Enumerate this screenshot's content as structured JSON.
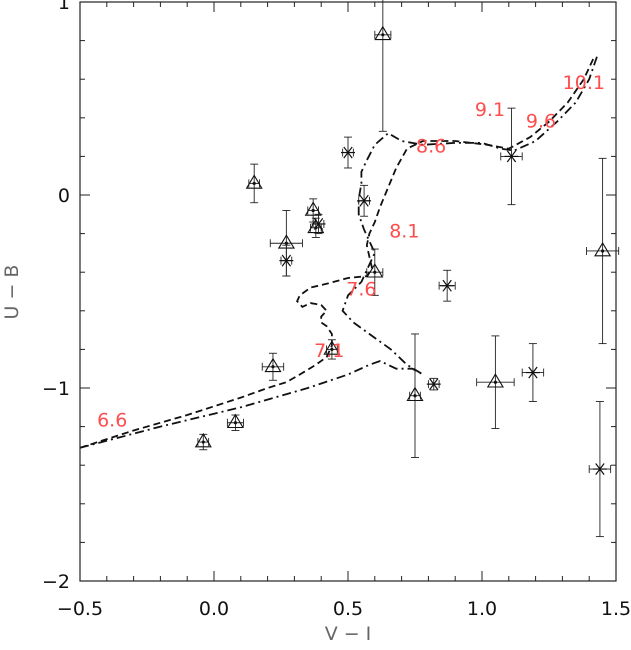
{
  "chart_data": {
    "type": "scatter",
    "xlabel": "V − I",
    "ylabel": "U − B",
    "xlim": [
      -0.5,
      1.5
    ],
    "ylim": [
      -2.0,
      1.0
    ],
    "y_inverted": true,
    "grid": false,
    "x_ticks": [
      "−0.5",
      "0.0",
      "0.5",
      "1.0",
      "1.5"
    ],
    "x_tick_values": [
      -0.5,
      0.0,
      0.5,
      1.0,
      1.5
    ],
    "y_ticks": [
      "1",
      "0",
      "−1",
      "−2"
    ],
    "y_tick_values": [
      1,
      0,
      -1,
      -2
    ],
    "series": [
      {
        "marker": "triangle",
        "points": [
          {
            "x": 0.63,
            "y": 0.83,
            "xerr": 0.03,
            "yerr": 0.5
          },
          {
            "x": 0.15,
            "y": 0.06,
            "xerr": 0.02,
            "yerr": 0.1
          },
          {
            "x": 0.37,
            "y": -0.08,
            "xerr": 0.02,
            "yerr": 0.06
          },
          {
            "x": 0.38,
            "y": -0.17,
            "xerr": 0.02,
            "yerr": 0.05
          },
          {
            "x": 0.27,
            "y": -0.25,
            "xerr": 0.06,
            "yerr": 0.17
          },
          {
            "x": 0.6,
            "y": -0.4,
            "xerr": 0.03,
            "yerr": 0.12
          },
          {
            "x": 0.44,
            "y": -0.8,
            "xerr": 0.02,
            "yerr": 0.05
          },
          {
            "x": 0.22,
            "y": -0.89,
            "xerr": 0.04,
            "yerr": 0.07
          },
          {
            "x": 0.75,
            "y": -1.04,
            "xerr": 0.02,
            "yerr": 0.32
          },
          {
            "x": 1.05,
            "y": -0.97,
            "xerr": 0.07,
            "yerr": 0.24
          },
          {
            "x": 1.45,
            "y": -0.29,
            "xerr": 0.06,
            "yerr": 0.48
          },
          {
            "x": 0.08,
            "y": -1.18,
            "xerr": 0.03,
            "yerr": 0.04
          },
          {
            "x": -0.04,
            "y": -1.28,
            "xerr": 0.02,
            "yerr": 0.04
          }
        ]
      },
      {
        "marker": "asterisk",
        "points": [
          {
            "x": 0.5,
            "y": 0.22,
            "xerr": 0.02,
            "yerr": 0.08
          },
          {
            "x": 0.56,
            "y": -0.03,
            "xerr": 0.02,
            "yerr": 0.08
          },
          {
            "x": 1.11,
            "y": 0.2,
            "xerr": 0.04,
            "yerr": 0.25
          },
          {
            "x": 0.39,
            "y": -0.15,
            "xerr": 0.02,
            "yerr": 0.05
          },
          {
            "x": 0.27,
            "y": -0.34,
            "xerr": 0.02,
            "yerr": 0.08
          },
          {
            "x": 0.87,
            "y": -0.47,
            "xerr": 0.03,
            "yerr": 0.08
          },
          {
            "x": 0.82,
            "y": -0.98,
            "xerr": 0.02,
            "yerr": 0.03
          },
          {
            "x": 1.19,
            "y": -0.92,
            "xerr": 0.04,
            "yerr": 0.15
          },
          {
            "x": 1.44,
            "y": -1.42,
            "xerr": 0.04,
            "yerr": 0.35
          }
        ]
      }
    ],
    "curves": [
      {
        "style": "dashed",
        "points": [
          [
            -0.5,
            -1.31
          ],
          [
            -0.3,
            -1.22
          ],
          [
            -0.1,
            -1.14
          ],
          [
            0.1,
            -1.05
          ],
          [
            0.2,
            -1.0
          ],
          [
            0.27,
            -0.97
          ],
          [
            0.32,
            -0.93
          ],
          [
            0.38,
            -0.88
          ],
          [
            0.42,
            -0.84
          ],
          [
            0.44,
            -0.78
          ],
          [
            0.44,
            -0.72
          ],
          [
            0.42,
            -0.68
          ],
          [
            0.4,
            -0.66
          ],
          [
            0.4,
            -0.63
          ],
          [
            0.42,
            -0.6
          ],
          [
            0.4,
            -0.57
          ],
          [
            0.36,
            -0.56
          ],
          [
            0.33,
            -0.58
          ],
          [
            0.31,
            -0.55
          ],
          [
            0.32,
            -0.52
          ],
          [
            0.36,
            -0.48
          ],
          [
            0.42,
            -0.46
          ],
          [
            0.5,
            -0.43
          ],
          [
            0.57,
            -0.42
          ],
          [
            0.59,
            -0.38
          ],
          [
            0.58,
            -0.32
          ],
          [
            0.57,
            -0.26
          ],
          [
            0.58,
            -0.2
          ],
          [
            0.6,
            -0.14
          ],
          [
            0.62,
            -0.06
          ],
          [
            0.65,
            0.04
          ],
          [
            0.68,
            0.14
          ],
          [
            0.72,
            0.24
          ],
          [
            0.78,
            0.28
          ],
          [
            0.9,
            0.28
          ],
          [
            1.02,
            0.26
          ],
          [
            1.1,
            0.24
          ],
          [
            1.18,
            0.3
          ],
          [
            1.25,
            0.38
          ],
          [
            1.32,
            0.48
          ],
          [
            1.38,
            0.6
          ],
          [
            1.42,
            0.72
          ]
        ]
      },
      {
        "style": "dashdot",
        "points": [
          [
            -0.5,
            -1.31
          ],
          [
            -0.2,
            -1.2
          ],
          [
            0.1,
            -1.1
          ],
          [
            0.35,
            -1.0
          ],
          [
            0.5,
            -0.93
          ],
          [
            0.58,
            -0.88
          ],
          [
            0.62,
            -0.86
          ],
          [
            0.68,
            -0.9
          ],
          [
            0.74,
            -0.9
          ],
          [
            0.78,
            -0.93
          ],
          [
            0.72,
            -0.88
          ],
          [
            0.66,
            -0.8
          ],
          [
            0.58,
            -0.72
          ],
          [
            0.52,
            -0.66
          ],
          [
            0.48,
            -0.6
          ],
          [
            0.5,
            -0.52
          ],
          [
            0.55,
            -0.45
          ],
          [
            0.58,
            -0.36
          ],
          [
            0.6,
            -0.3
          ],
          [
            0.58,
            -0.24
          ],
          [
            0.56,
            -0.18
          ],
          [
            0.54,
            -0.1
          ],
          [
            0.54,
            -0.02
          ],
          [
            0.55,
            0.06
          ],
          [
            0.55,
            0.12
          ],
          [
            0.57,
            0.18
          ],
          [
            0.6,
            0.26
          ],
          [
            0.65,
            0.32
          ],
          [
            0.7,
            0.28
          ],
          [
            0.78,
            0.26
          ],
          [
            0.9,
            0.27
          ],
          [
            1.0,
            0.27
          ],
          [
            1.07,
            0.24
          ],
          [
            1.12,
            0.23
          ],
          [
            1.2,
            0.28
          ],
          [
            1.28,
            0.38
          ],
          [
            1.35,
            0.48
          ],
          [
            1.4,
            0.6
          ],
          [
            1.43,
            0.72
          ]
        ]
      }
    ],
    "annotations": [
      {
        "text": "6.6",
        "x": -0.38,
        "y": -1.2
      },
      {
        "text": "7.1",
        "x": 0.43,
        "y": -0.84
      },
      {
        "text": "7.6",
        "x": 0.55,
        "y": -0.52
      },
      {
        "text": "8.1",
        "x": 0.71,
        "y": -0.22
      },
      {
        "text": "8.6",
        "x": 0.81,
        "y": 0.22
      },
      {
        "text": "9.1",
        "x": 1.03,
        "y": 0.41
      },
      {
        "text": "9.6",
        "x": 1.22,
        "y": 0.35
      },
      {
        "text": "10.1",
        "x": 1.38,
        "y": 0.55
      }
    ]
  }
}
